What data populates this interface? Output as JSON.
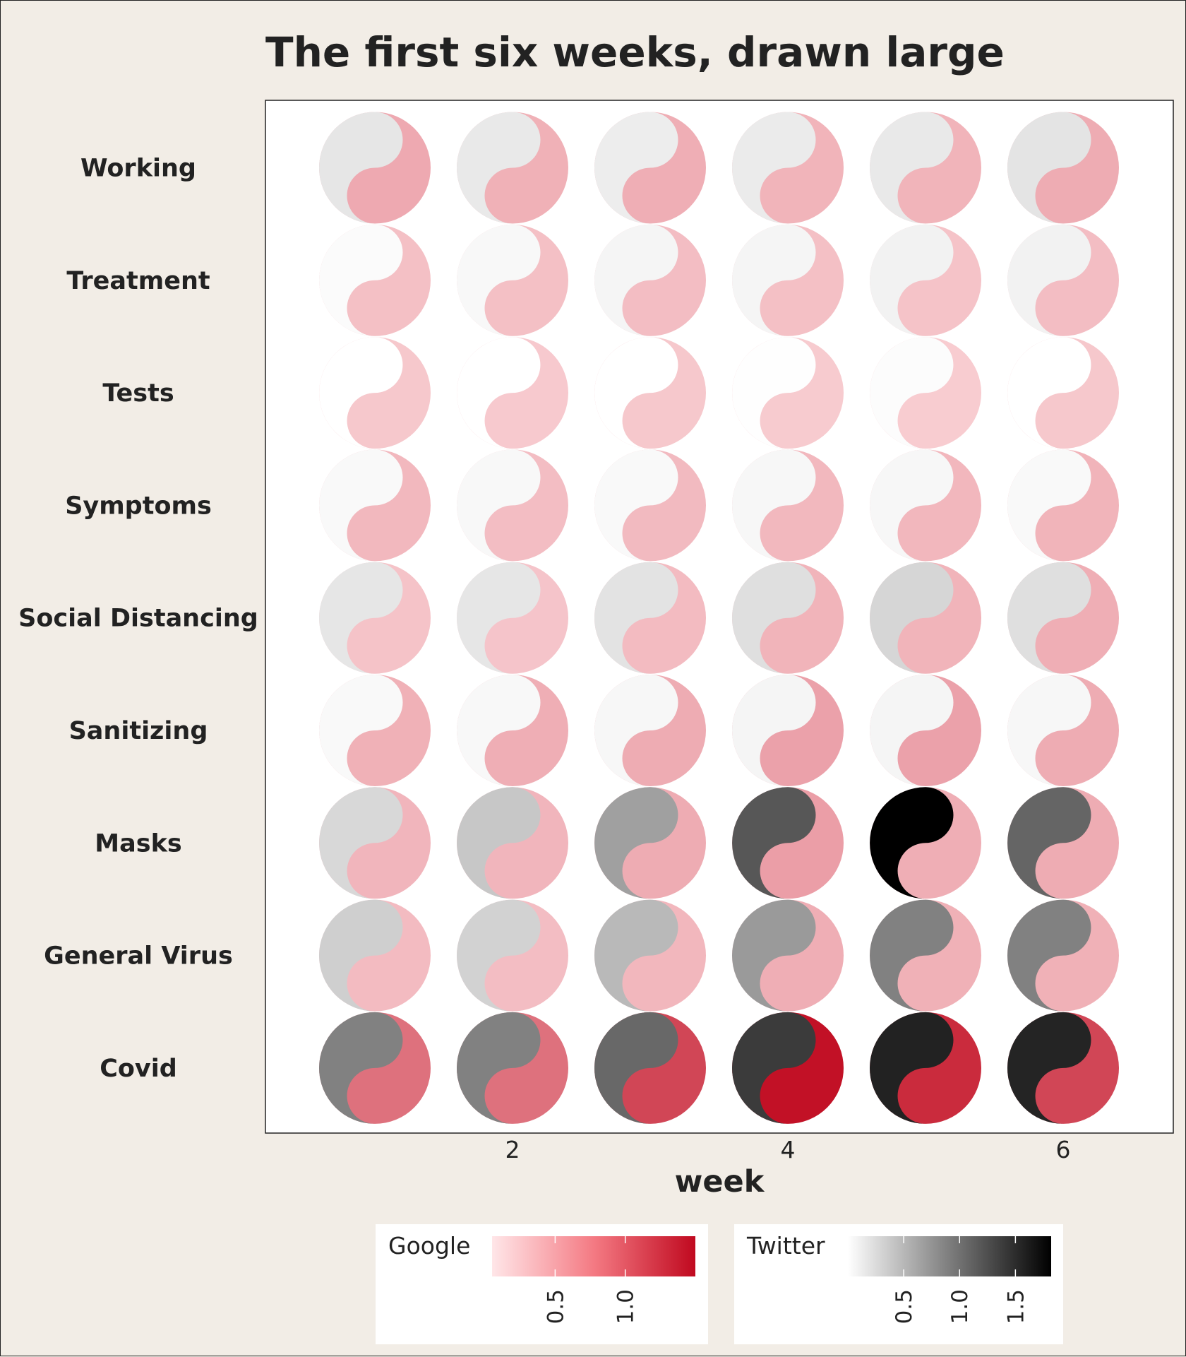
{
  "chart_data": {
    "type": "heatmap",
    "title": "The first six weeks, drawn large",
    "xlabel": "week",
    "ylabel": "",
    "x": [
      1,
      2,
      3,
      4,
      5,
      6
    ],
    "x_ticks": [
      "2",
      "4",
      "6"
    ],
    "x_tick_values": [
      2,
      4,
      6
    ],
    "xlim": [
      0.4,
      7.0
    ],
    "categories": [
      "Working",
      "Treatment",
      "Tests",
      "Symptoms",
      "Social Distancing",
      "Sanitizing",
      "Masks",
      "General Virus",
      "Covid"
    ],
    "glyph": "yin-yang",
    "series": [
      {
        "name": "Google",
        "half": "lower-right",
        "color_low": "#ffe6e8",
        "color_high": "#c0091f",
        "range": [
          0.05,
          1.5
        ],
        "legend_ticks": [
          "0.5",
          "1.0"
        ],
        "legend_tick_values": [
          0.5,
          1.0
        ],
        "values": {
          "Working": [
            0.45,
            0.4,
            0.42,
            0.38,
            0.38,
            0.43
          ],
          "Treatment": [
            0.3,
            0.3,
            0.32,
            0.3,
            0.28,
            0.32
          ],
          "Tests": [
            0.25,
            0.24,
            0.25,
            0.23,
            0.22,
            0.25
          ],
          "Symptoms": [
            0.35,
            0.32,
            0.34,
            0.35,
            0.36,
            0.38
          ],
          "Social Distancing": [
            0.28,
            0.27,
            0.33,
            0.38,
            0.38,
            0.42
          ],
          "Sanitizing": [
            0.4,
            0.42,
            0.43,
            0.5,
            0.5,
            0.43
          ],
          "Masks": [
            0.37,
            0.37,
            0.43,
            0.52,
            0.42,
            0.43
          ],
          "General Virus": [
            0.33,
            0.32,
            0.36,
            0.42,
            0.4,
            0.4
          ],
          "Covid": [
            0.82,
            0.82,
            1.1,
            1.45,
            1.28,
            1.1
          ]
        }
      },
      {
        "name": "Twitter",
        "half": "upper-left",
        "color_low": "#ffffff",
        "color_high": "#000000",
        "range": [
          0.0,
          1.82
        ],
        "legend_ticks": [
          "0.5",
          "1.0",
          "1.5"
        ],
        "legend_tick_values": [
          0.5,
          1.0,
          1.5
        ],
        "values": {
          "Working": [
            0.18,
            0.16,
            0.13,
            0.14,
            0.16,
            0.19
          ],
          "Treatment": [
            0.03,
            0.05,
            0.07,
            0.07,
            0.09,
            0.09
          ],
          "Tests": [
            0.0,
            0.0,
            0.0,
            0.01,
            0.02,
            0.0
          ],
          "Symptoms": [
            0.04,
            0.05,
            0.04,
            0.06,
            0.06,
            0.04
          ],
          "Social Distancing": [
            0.18,
            0.18,
            0.2,
            0.23,
            0.29,
            0.23
          ],
          "Sanitizing": [
            0.04,
            0.05,
            0.06,
            0.07,
            0.07,
            0.06
          ],
          "Masks": [
            0.28,
            0.4,
            0.68,
            1.2,
            1.82,
            1.1
          ],
          "General Virus": [
            0.34,
            0.32,
            0.5,
            0.72,
            0.9,
            0.9
          ],
          "Covid": [
            0.9,
            0.9,
            1.08,
            1.4,
            1.58,
            1.56
          ]
        }
      }
    ],
    "grid": false,
    "legend": "bottom"
  }
}
